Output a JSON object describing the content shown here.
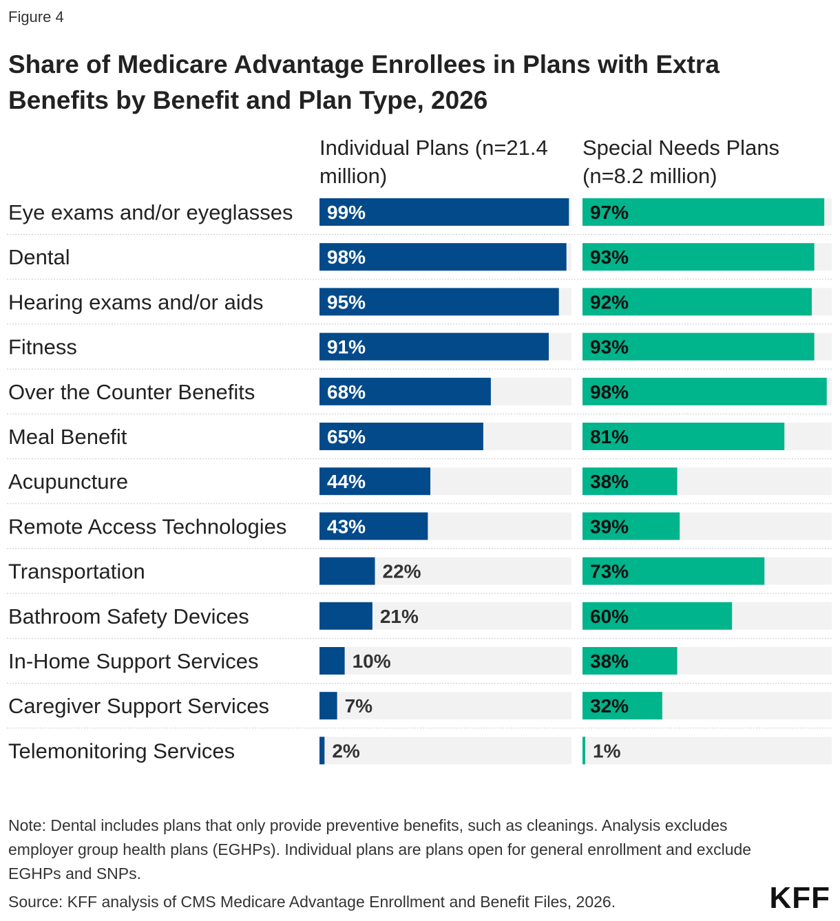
{
  "figure_label": "Figure 4",
  "title": "Share of Medicare Advantage Enrollees in Plans with Extra Benefits by Benefit and Plan Type, 2026",
  "note": "Note: Dental includes plans that only provide preventive benefits, such as cleanings. Analysis excludes employer group health plans (EGHPs). Individual plans are plans open for general enrollment and exclude EGHPs and SNPs.",
  "source": "Source: KFF analysis of CMS Medicare Advantage Enrollment and Benefit Files, 2026.",
  "logo": "KFF",
  "colors": {
    "individual": "#034a8b",
    "snp": "#00b48b",
    "track": "#f2f2f2"
  },
  "chart_data": {
    "type": "bar",
    "orientation": "horizontal",
    "categories": [
      "Eye exams and/or eyeglasses",
      "Dental",
      "Hearing exams and/or aids",
      "Fitness",
      "Over the Counter Benefits",
      "Meal Benefit",
      "Acupuncture",
      "Remote Access Technologies",
      "Transportation",
      "Bathroom Safety Devices",
      "In-Home Support Services",
      "Caregiver Support Services",
      "Telemonitoring Services"
    ],
    "series": [
      {
        "name": "Individual Plans (n=21.4 million)",
        "values": [
          99,
          98,
          95,
          91,
          68,
          65,
          44,
          43,
          22,
          21,
          10,
          7,
          2
        ],
        "labels": [
          "99%",
          "98%",
          "95%",
          "91%",
          "68%",
          "65%",
          "44%",
          "43%",
          "22%",
          "21%",
          "10%",
          "7%",
          "2%"
        ]
      },
      {
        "name": "Special Needs Plans (n=8.2 million)",
        "values": [
          97,
          93,
          92,
          93,
          98,
          81,
          38,
          39,
          73,
          60,
          38,
          32,
          1
        ],
        "labels": [
          "97%",
          "93%",
          "92%",
          "93%",
          "98%",
          "81%",
          "38%",
          "39%",
          "73%",
          "60%",
          "38%",
          "32%",
          "1%"
        ]
      }
    ],
    "xlim": [
      0,
      100
    ]
  }
}
